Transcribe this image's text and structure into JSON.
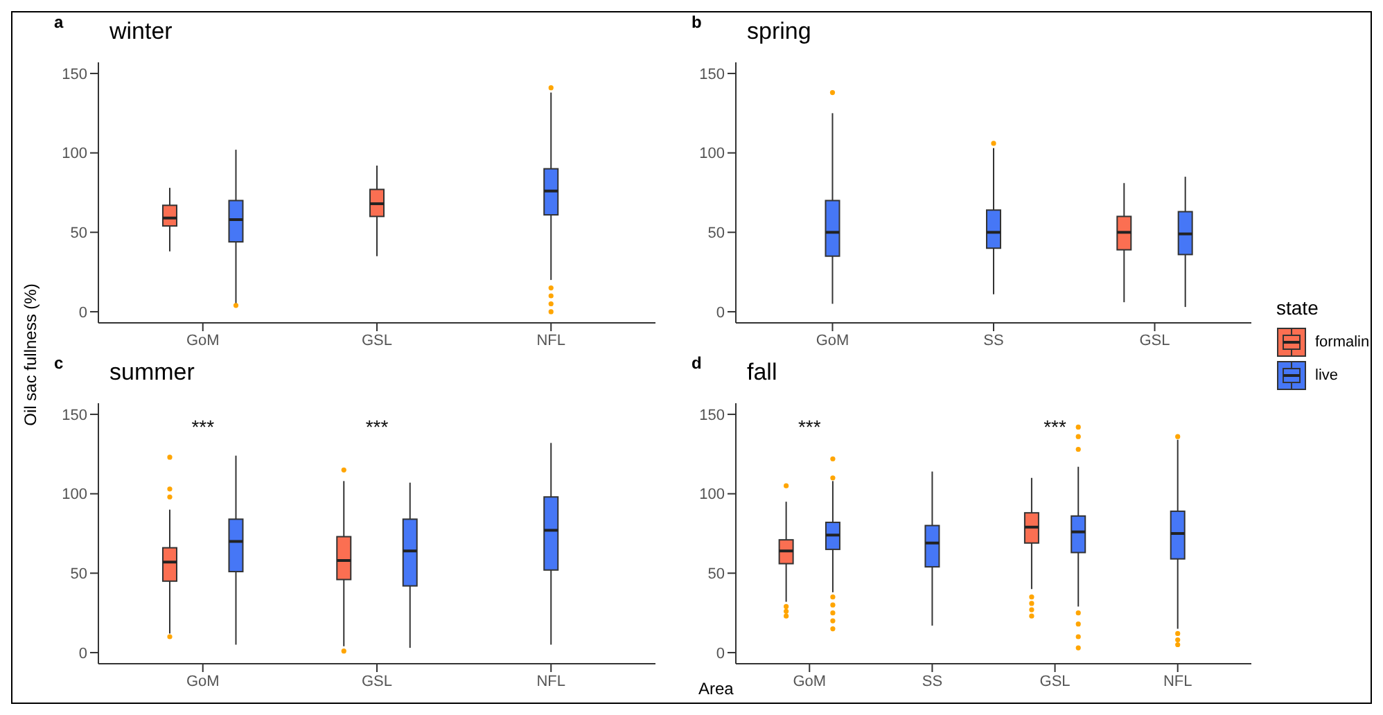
{
  "chart_data": [
    {
      "type": "box",
      "title": "winter",
      "ylabel": "Oil sac fullness (%)",
      "annotations": [
        "a"
      ],
      "categories": [
        "GoM",
        "GSL",
        "NFL"
      ],
      "ylim": [
        -7,
        157
      ],
      "yticks": [
        0,
        50,
        100,
        150
      ],
      "series": [
        {
          "color": "#fb6f52",
          "boxes": [
            {
              "low": 38,
              "q1": 54,
              "median": 59,
              "q3": 67,
              "high": 78
            },
            {
              "low": 35,
              "q1": 60,
              "median": 68,
              "q3": 77,
              "high": 92
            },
            null
          ]
        },
        {
          "color": "#4677f6",
          "boxes": [
            {
              "low": 5,
              "q1": 44,
              "median": 58,
              "q3": 70,
              "high": 102,
              "outliers": [
                4
              ]
            },
            null,
            {
              "low": 20,
              "q1": 61,
              "median": 76,
              "q3": 90,
              "high": 138,
              "outliers": [
                0,
                5,
                10,
                15,
                141
              ]
            }
          ]
        }
      ]
    },
    {
      "type": "box",
      "title": "spring",
      "annotations": [
        "b"
      ],
      "categories": [
        "GoM",
        "SS",
        "GSL"
      ],
      "ylim": [
        -7,
        157
      ],
      "yticks": [
        0,
        50,
        100,
        150
      ],
      "legend": "right",
      "legend_title": "state",
      "series": [
        {
          "name": "formalin",
          "color": "#fb6f52",
          "boxes": [
            null,
            null,
            {
              "low": 6,
              "q1": 39,
              "median": 50,
              "q3": 60,
              "high": 81
            }
          ]
        },
        {
          "name": "live",
          "color": "#4677f6",
          "boxes": [
            {
              "low": 5,
              "q1": 35,
              "median": 50,
              "q3": 70,
              "high": 125,
              "outliers": [
                138
              ]
            },
            {
              "low": 11,
              "q1": 40,
              "median": 50,
              "q3": 64,
              "high": 103,
              "outliers": [
                106
              ]
            },
            {
              "low": 3,
              "q1": 36,
              "median": 49,
              "q3": 63,
              "high": 85
            }
          ]
        }
      ]
    },
    {
      "type": "box",
      "title": "summer",
      "annotations": [
        "c",
        "***",
        "***"
      ],
      "categories": [
        "GoM",
        "GSL",
        "NFL"
      ],
      "ylim": [
        -7,
        157
      ],
      "yticks": [
        0,
        50,
        100,
        150
      ],
      "series": [
        {
          "color": "#fb6f52",
          "boxes": [
            {
              "low": 12,
              "q1": 45,
              "median": 57,
              "q3": 66,
              "high": 90,
              "outliers": [
                10,
                98,
                103,
                123
              ]
            },
            {
              "low": 4,
              "q1": 46,
              "median": 58,
              "q3": 73,
              "high": 108,
              "outliers": [
                1,
                115
              ]
            },
            null
          ]
        },
        {
          "color": "#4677f6",
          "boxes": [
            {
              "low": 5,
              "q1": 51,
              "median": 70,
              "q3": 84,
              "high": 124
            },
            {
              "low": 3,
              "q1": 42,
              "median": 64,
              "q3": 84,
              "high": 107
            },
            {
              "low": 5,
              "q1": 52,
              "median": 77,
              "q3": 98,
              "high": 132
            }
          ]
        }
      ]
    },
    {
      "type": "box",
      "title": "fall",
      "xlabel": "Area",
      "annotations": [
        "d",
        "***",
        "***"
      ],
      "categories": [
        "GoM",
        "SS",
        "GSL",
        "NFL"
      ],
      "ylim": [
        -7,
        157
      ],
      "yticks": [
        0,
        50,
        100,
        150
      ],
      "series": [
        {
          "color": "#fb6f52",
          "boxes": [
            {
              "low": 32,
              "q1": 56,
              "median": 64,
              "q3": 71,
              "high": 95,
              "outliers": [
                23,
                26,
                29,
                105
              ]
            },
            null,
            {
              "low": 40,
              "q1": 69,
              "median": 79,
              "q3": 88,
              "high": 110,
              "outliers": [
                23,
                27,
                31,
                35
              ]
            },
            null
          ]
        },
        {
          "color": "#4677f6",
          "boxes": [
            {
              "low": 38,
              "q1": 65,
              "median": 74,
              "q3": 82,
              "high": 108,
              "outliers": [
                15,
                20,
                25,
                30,
                35,
                110,
                122
              ]
            },
            {
              "low": 17,
              "q1": 54,
              "median": 69,
              "q3": 80,
              "high": 114
            },
            {
              "low": 29,
              "q1": 63,
              "median": 76,
              "q3": 86,
              "high": 117,
              "outliers": [
                3,
                10,
                18,
                25,
                128,
                136,
                142
              ]
            },
            {
              "low": 15,
              "q1": 59,
              "median": 75,
              "q3": 89,
              "high": 134,
              "outliers": [
                5,
                8,
                12,
                136
              ]
            }
          ]
        }
      ]
    }
  ]
}
